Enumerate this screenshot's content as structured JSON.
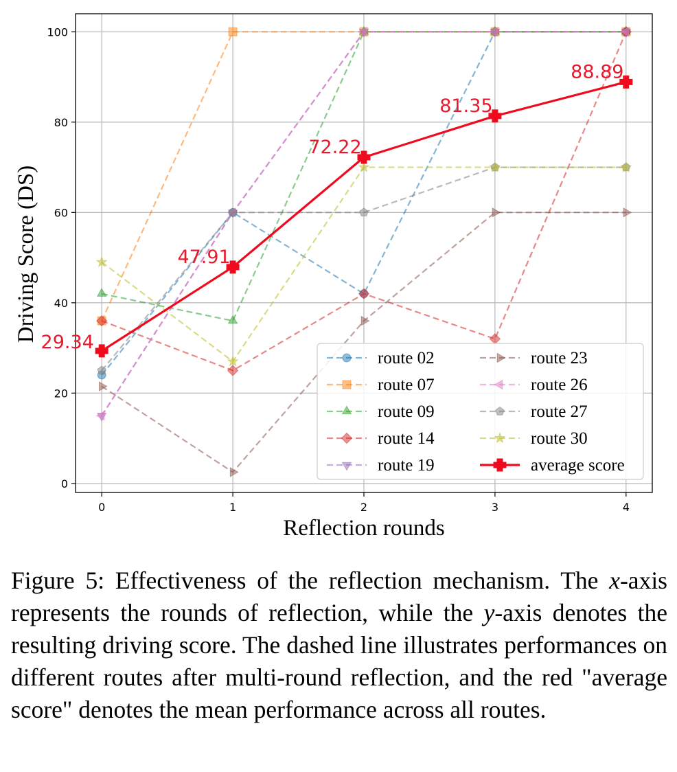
{
  "chart_data": {
    "type": "line",
    "x": [
      0,
      1,
      2,
      3,
      4
    ],
    "xlabel": "Reflection rounds",
    "ylabel": "Driving Score (DS)",
    "xlim": [
      -0.2,
      4.2
    ],
    "ylim": [
      -2,
      104
    ],
    "xticks": [
      "0",
      "1",
      "2",
      "3",
      "4"
    ],
    "yticks": [
      "0",
      "20",
      "40",
      "60",
      "80",
      "100"
    ],
    "grid": true,
    "legend_position": "lower-right",
    "series": [
      {
        "name": "route 02",
        "values": [
          24,
          60,
          42,
          100,
          100
        ],
        "color": "#1f77b4",
        "marker": "circle",
        "style": "dashed"
      },
      {
        "name": "route 07",
        "values": [
          36,
          100,
          100,
          100,
          100
        ],
        "color": "#ff7f0e",
        "marker": "square",
        "style": "dashed"
      },
      {
        "name": "route 09",
        "values": [
          42,
          36,
          100,
          100,
          100
        ],
        "color": "#2ca02c",
        "marker": "triangle-up",
        "style": "dashed"
      },
      {
        "name": "route 14",
        "values": [
          36,
          25,
          42,
          32,
          100
        ],
        "color": "#d62728",
        "marker": "diamond",
        "style": "dashed"
      },
      {
        "name": "route 19",
        "values": [
          15,
          60,
          100,
          100,
          100
        ],
        "color": "#9467bd",
        "marker": "triangle-down",
        "style": "dashed"
      },
      {
        "name": "route 23",
        "values": [
          21.5,
          2.5,
          36,
          60,
          60
        ],
        "color": "#8c564b",
        "marker": "triangle-right",
        "style": "dashed"
      },
      {
        "name": "route 26",
        "values": [
          15,
          60,
          100,
          100,
          100
        ],
        "color": "#e377c2",
        "marker": "triangle-left",
        "style": "dashed"
      },
      {
        "name": "route 27",
        "values": [
          25,
          60,
          60,
          70,
          70
        ],
        "color": "#7f7f7f",
        "marker": "pentagon",
        "style": "dashed"
      },
      {
        "name": "route 30",
        "values": [
          49,
          27,
          70,
          70,
          70
        ],
        "color": "#bcbd22",
        "marker": "star",
        "style": "dashed"
      },
      {
        "name": "average score",
        "values": [
          29.34,
          47.91,
          72.22,
          81.35,
          88.89
        ],
        "color": "#f00a1e",
        "marker": "plus",
        "style": "solid"
      }
    ],
    "data_labels": [
      "29.34",
      "47.91",
      "72.22",
      "81.35",
      "88.89"
    ],
    "data_label_color": "#e8192c"
  },
  "caption": {
    "part1": "Figure 5: Effectiveness of the reflection mechanism. The ",
    "x_var": "x",
    "part2": "-axis represents the rounds of reflection, while the ",
    "y_var": "y",
    "part3": "-axis denotes the resulting driving score. The dashed line illustrates performances on different routes after multi-round reflection, and the red \"average score\" denotes the mean performance across all routes."
  }
}
